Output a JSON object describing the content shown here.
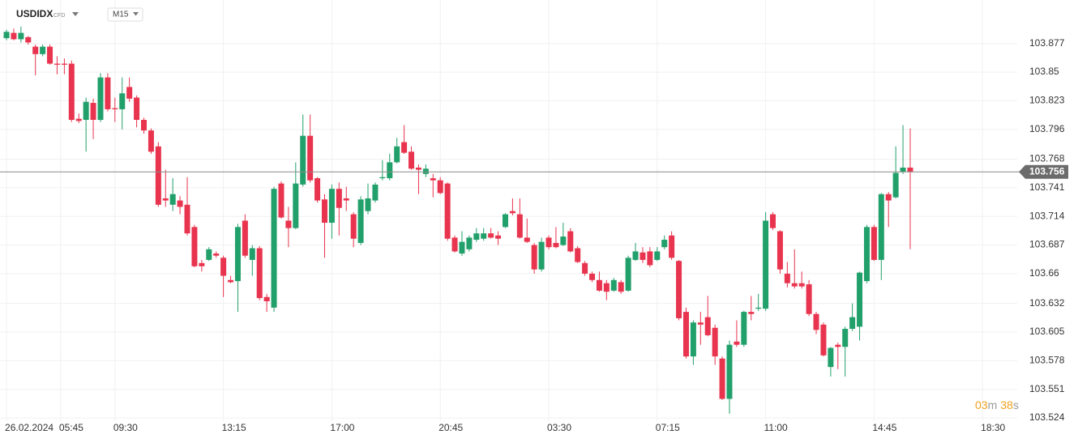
{
  "symbol": "USDIDX",
  "instrument_type": "CFD",
  "timeframe": "M15",
  "countdown": [
    "03",
    "m",
    "38",
    "s"
  ],
  "chart_data": {
    "type": "candlestick",
    "up_color": "#22a06b",
    "down_color": "#e8344e",
    "last_price": 103.756,
    "grid": true,
    "xlim": [
      -0.9,
      139.8
    ],
    "ylim": [
      103.521,
      103.918
    ],
    "yticks": [
      103.877,
      103.85,
      103.823,
      103.796,
      103.768,
      103.741,
      103.714,
      103.687,
      103.66,
      103.632,
      103.605,
      103.578,
      103.551,
      103.524
    ],
    "xticks": [
      {
        "value": 0,
        "label": "26.02.2024"
      },
      {
        "value": 7.5,
        "label": "05:45"
      },
      {
        "value": 15,
        "label": "09:30"
      },
      {
        "value": 30,
        "label": "13:15"
      },
      {
        "value": 45,
        "label": "17:00"
      },
      {
        "value": 60,
        "label": "20:45"
      },
      {
        "value": 75,
        "label": "03:30"
      },
      {
        "value": 90,
        "label": "07:15"
      },
      {
        "value": 105,
        "label": "11:00"
      },
      {
        "value": 120,
        "label": "14:45"
      },
      {
        "value": 135,
        "label": "18:30"
      }
    ],
    "open": [
      103.882,
      103.887,
      103.881,
      103.883,
      103.874,
      103.867,
      103.874,
      103.858,
      103.858,
      103.858,
      103.806,
      103.805,
      103.821,
      103.805,
      103.845,
      103.816,
      103.815,
      103.836,
      103.826,
      103.805,
      103.795,
      103.78,
      103.731,
      103.725,
      103.729,
      103.725,
      103.704,
      103.67,
      103.673,
      103.679,
      103.675,
      103.654,
      103.653,
      103.71,
      103.673,
      103.684,
      103.638,
      103.628,
      103.745,
      103.71,
      103.703,
      103.744,
      103.79,
      103.75,
      103.73,
      103.708,
      103.74,
      103.731,
      103.716,
      103.689,
      103.719,
      103.729,
      103.75,
      103.75,
      103.765,
      103.784,
      103.775,
      103.76,
      103.754,
      103.75,
      103.748,
      103.745,
      103.694,
      103.679,
      103.683,
      103.692,
      103.693,
      103.698,
      103.696,
      103.704,
      103.719,
      103.716,
      103.694,
      103.687,
      103.664,
      103.694,
      103.689,
      103.687,
      103.7,
      103.684,
      103.67,
      103.66,
      103.654,
      103.651,
      103.644,
      103.652,
      103.644,
      103.673,
      103.68,
      103.681,
      103.673,
      103.685,
      103.696,
      103.672,
      103.624,
      103.582,
      103.614,
      103.619,
      103.609,
      103.58,
      103.542,
      103.596,
      103.593,
      103.624,
      103.627,
      103.627,
      103.716,
      103.7,
      103.66,
      103.651,
      103.651,
      103.65,
      103.622,
      103.612,
      103.572,
      103.593,
      103.591,
      103.608,
      103.61,
      103.653,
      103.704,
      103.673,
      103.735,
      103.732,
      103.756,
      103.76
    ],
    "high": [
      103.89,
      103.891,
      103.893,
      103.884,
      103.876,
      103.876,
      103.876,
      103.865,
      103.863,
      103.861,
      103.811,
      103.826,
      103.825,
      103.849,
      103.849,
      103.826,
      103.845,
      103.845,
      103.828,
      103.807,
      103.797,
      103.784,
      103.758,
      103.75,
      103.733,
      103.751,
      103.706,
      103.673,
      103.685,
      103.681,
      103.677,
      103.658,
      103.707,
      103.716,
      103.687,
      103.686,
      103.641,
      103.742,
      103.747,
      103.723,
      103.765,
      103.81,
      103.81,
      103.751,
      103.735,
      103.744,
      103.746,
      103.742,
      103.718,
      103.733,
      103.745,
      103.746,
      103.767,
      103.773,
      103.788,
      103.8,
      103.78,
      103.763,
      103.763,
      103.754,
      103.751,
      103.746,
      103.696,
      103.7,
      103.696,
      103.703,
      103.703,
      103.703,
      103.7,
      103.717,
      103.731,
      103.731,
      103.712,
      103.689,
      103.694,
      103.696,
      103.704,
      103.708,
      103.703,
      103.686,
      103.672,
      103.662,
      103.662,
      103.654,
      103.656,
      103.654,
      103.677,
      103.689,
      103.685,
      103.685,
      103.685,
      103.696,
      103.7,
      103.673,
      103.628,
      103.616,
      103.624,
      103.639,
      103.612,
      103.582,
      103.597,
      103.616,
      103.625,
      103.639,
      103.641,
      103.718,
      103.718,
      103.701,
      103.671,
      103.683,
      103.662,
      103.654,
      103.624,
      103.614,
      103.591,
      103.595,
      103.61,
      103.632,
      103.662,
      103.706,
      103.706,
      103.736,
      103.737,
      103.78,
      103.8,
      103.797
    ],
    "low": [
      103.88,
      103.88,
      103.878,
      103.876,
      103.847,
      103.865,
      103.857,
      103.848,
      103.848,
      103.803,
      103.802,
      103.775,
      103.787,
      103.803,
      103.813,
      103.803,
      103.796,
      103.822,
      103.798,
      103.792,
      103.773,
      103.723,
      103.723,
      103.719,
      103.716,
      103.696,
      103.666,
      103.662,
      103.672,
      103.675,
      103.638,
      103.651,
      103.624,
      103.675,
      103.658,
      103.635,
      103.624,
      103.624,
      103.712,
      103.685,
      103.702,
      103.742,
      103.746,
      103.727,
      103.675,
      103.693,
      103.696,
      103.719,
      103.685,
      103.687,
      103.716,
      103.727,
      103.748,
      103.748,
      103.764,
      103.773,
      103.758,
      103.735,
      103.751,
      103.732,
      103.735,
      103.691,
      103.68,
      103.677,
      103.681,
      103.69,
      103.691,
      103.693,
      103.687,
      103.703,
      103.715,
      103.693,
      103.689,
      103.66,
      103.662,
      103.683,
      103.684,
      103.686,
      103.68,
      103.67,
      103.658,
      103.652,
      103.643,
      103.635,
      103.643,
      103.641,
      103.643,
      103.672,
      103.67,
      103.666,
      103.672,
      103.683,
      103.673,
      103.616,
      103.58,
      103.574,
      103.593,
      103.601,
      103.574,
      103.541,
      103.528,
      103.591,
      103.591,
      103.616,
      103.625,
      103.625,
      103.701,
      103.66,
      103.647,
      103.646,
      103.646,
      103.62,
      103.603,
      103.582,
      103.563,
      103.57,
      103.563,
      103.606,
      103.597,
      103.651,
      103.672,
      103.654,
      103.704,
      103.731,
      103.754,
      103.683
    ],
    "close": [
      103.888,
      103.881,
      103.887,
      103.878,
      103.867,
      103.874,
      103.858,
      103.857,
      103.857,
      103.805,
      103.804,
      103.822,
      103.805,
      103.845,
      103.815,
      103.815,
      103.83,
      103.825,
      103.805,
      103.795,
      103.775,
      103.725,
      103.729,
      103.735,
      103.723,
      103.698,
      103.667,
      103.667,
      103.683,
      103.677,
      103.658,
      103.652,
      103.704,
      103.677,
      103.684,
      103.637,
      103.634,
      103.74,
      103.713,
      103.703,
      103.745,
      103.79,
      103.748,
      103.729,
      103.708,
      103.74,
      103.722,
      103.729,
      103.693,
      103.73,
      103.731,
      103.744,
      103.751,
      103.765,
      103.78,
      103.774,
      103.759,
      103.758,
      103.759,
      103.748,
      103.736,
      103.693,
      103.681,
      103.69,
      103.694,
      103.698,
      103.698,
      103.694,
      103.693,
      103.716,
      103.717,
      103.694,
      103.69,
      103.664,
      103.69,
      103.685,
      103.685,
      103.695,
      103.681,
      103.671,
      103.66,
      103.654,
      103.644,
      103.643,
      103.654,
      103.643,
      103.675,
      103.681,
      103.673,
      103.668,
      103.681,
      103.692,
      103.675,
      103.618,
      103.582,
      103.614,
      103.612,
      103.602,
      103.582,
      103.542,
      103.593,
      103.593,
      103.624,
      103.622,
      103.628,
      103.71,
      103.703,
      103.664,
      103.651,
      103.648,
      103.648,
      103.622,
      103.607,
      103.583,
      103.59,
      103.591,
      103.608,
      103.619,
      103.661,
      103.704,
      103.673,
      103.735,
      103.729,
      103.755,
      103.76,
      103.756
    ]
  }
}
